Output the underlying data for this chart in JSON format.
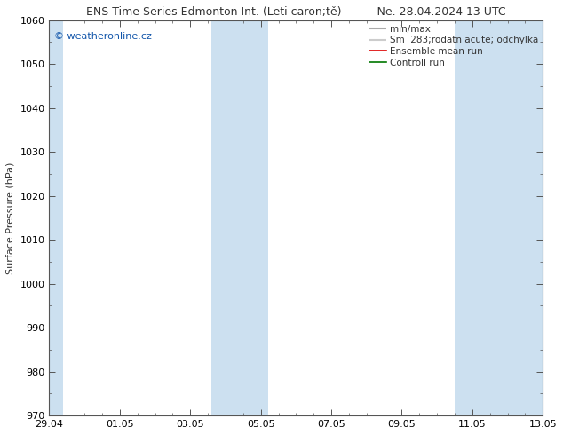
{
  "title_left": "ENS Time Series Edmonton Int. (Leti caron;tě)",
  "title_right": "Ne. 28.04.2024 13 UTC",
  "ylabel": "Surface Pressure (hPa)",
  "ylim": [
    970,
    1060
  ],
  "yticks": [
    970,
    980,
    990,
    1000,
    1010,
    1020,
    1030,
    1040,
    1050,
    1060
  ],
  "xlim": [
    0,
    14
  ],
  "xtick_labels": [
    "29.04",
    "01.05",
    "03.05",
    "05.05",
    "07.05",
    "09.05",
    "11.05",
    "13.05"
  ],
  "xtick_positions": [
    0,
    2,
    4,
    6,
    8,
    10,
    12,
    14
  ],
  "shade_bands": [
    {
      "start": 0,
      "end": 0.4
    },
    {
      "start": 4.6,
      "end": 6.2
    },
    {
      "start": 11.5,
      "end": 14.0
    }
  ],
  "shade_color": "#cce0f0",
  "watermark": "© weatheronline.cz",
  "watermark_color": "#1155aa",
  "legend_entries": [
    "min/max",
    "Sm  283;rodatn acute; odchylka",
    "Ensemble mean run",
    "Controll run"
  ],
  "legend_colors_line": [
    "#aaaaaa",
    "#cccccc",
    "#dd0000",
    "#007700"
  ],
  "background_color": "#ffffff",
  "plot_bg_color": "#ffffff",
  "title_fontsize": 9,
  "ylabel_fontsize": 8,
  "tick_fontsize": 8,
  "legend_fontsize": 7.5,
  "watermark_fontsize": 8,
  "border_color": "#555555",
  "border_linewidth": 0.8
}
